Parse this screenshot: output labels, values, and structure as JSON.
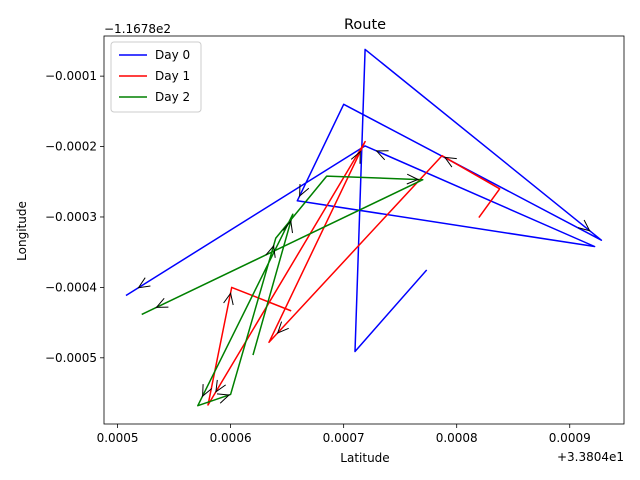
{
  "chart_data": {
    "type": "line",
    "title": "Route",
    "xlabel": "Latitude",
    "ylabel": "Longitude",
    "x_offset_label": "+3.3804e1",
    "y_offset_label": "−1.1678e2",
    "xlim": [
      0.000488,
      0.000948
    ],
    "ylim": [
      -0.000594,
      -4.3e-05
    ],
    "x_ticks": [
      {
        "value": 0.0005,
        "label": "0.0005"
      },
      {
        "value": 0.0006,
        "label": "0.0006"
      },
      {
        "value": 0.0007,
        "label": "0.0007"
      },
      {
        "value": 0.0008,
        "label": "0.0008"
      },
      {
        "value": 0.0009,
        "label": "0.0009"
      }
    ],
    "y_ticks": [
      {
        "value": -0.0001,
        "label": "−0.0001"
      },
      {
        "value": -0.0002,
        "label": "−0.0002"
      },
      {
        "value": -0.0003,
        "label": "−0.0003"
      },
      {
        "value": -0.0004,
        "label": "−0.0004"
      },
      {
        "value": -0.0005,
        "label": "−0.0005"
      }
    ],
    "grid": false,
    "legend_position": "top-left",
    "series": [
      {
        "name": "Day 0",
        "color": "#0000ff",
        "x": [
          0.000773,
          0.00071,
          0.000719,
          0.000928,
          0.0007,
          0.000659,
          0.000922,
          0.000719,
          0.000508
        ],
        "y": [
          -0.000376,
          -0.000491,
          -6.2e-05,
          -0.000333,
          -0.00014,
          -0.000277,
          -0.000342,
          -0.000199,
          -0.000411
        ],
        "arrows": [
          2,
          4,
          6,
          7
        ]
      },
      {
        "name": "Day 1",
        "color": "#ff0000",
        "x": [
          0.00082,
          0.000838,
          0.000787,
          0.000634,
          0.000719,
          0.00058,
          0.000601,
          0.000653
        ],
        "y": [
          -0.0003,
          -0.00026,
          -0.000213,
          -0.000478,
          -0.000193,
          -0.000567,
          -0.0004,
          -0.000433
        ],
        "arrows": [
          1,
          2,
          3,
          4,
          5,
          7
        ]
      },
      {
        "name": "Day 2",
        "color": "#008000",
        "x": [
          0.00062,
          0.000655,
          0.000571,
          0.0006,
          0.00064,
          0.000685,
          0.00077,
          0.000522
        ],
        "y": [
          -0.000495,
          -0.000296,
          -0.000568,
          -0.000552,
          -0.00033,
          -0.000242,
          -0.000247,
          -0.000438
        ],
        "arrows": [
          0,
          1,
          2,
          3,
          5,
          6,
          7
        ]
      }
    ]
  }
}
